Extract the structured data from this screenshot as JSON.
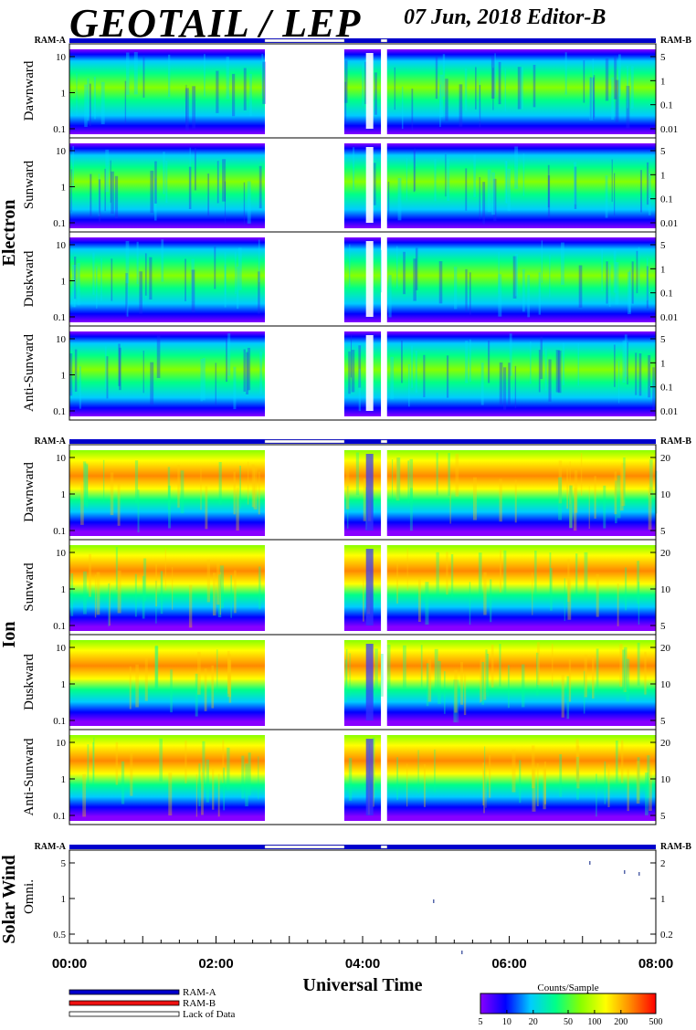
{
  "header": {
    "title": "GEOTAIL / LEP",
    "date_editor": "07 Jun, 2018   Editor-B"
  },
  "chart_data": {
    "type": "heatmap",
    "xlabel": "Universal Time",
    "x_ticks": [
      "00:00",
      "02:00",
      "04:00",
      "06:00",
      "08:00"
    ],
    "xlim": [
      "00:00",
      "08:00"
    ],
    "data_gaps": [
      [
        "02:40",
        "03:45"
      ],
      [
        "04:15",
        "04:20"
      ]
    ],
    "colorbar": {
      "label": "Counts/Sample",
      "range": [
        5,
        500
      ],
      "scale": "log",
      "ticks": [
        "5",
        "10",
        "20",
        "50",
        "100",
        "200",
        "500"
      ],
      "colors": [
        "#8800ff",
        "#0000ff",
        "#00ccff",
        "#00ff88",
        "#88ff00",
        "#ffff00",
        "#ff8800",
        "#ff0000"
      ]
    },
    "legend": [
      {
        "label": "RAM-A",
        "color": "#0000cc"
      },
      {
        "label": "RAM-B",
        "color": "#ee1111"
      },
      {
        "label": "Lack of Data",
        "color": "#ffffff"
      }
    ],
    "groups": [
      {
        "name": "Electron",
        "ram_left": "RAM-A",
        "ram_right": "RAM-B",
        "left_ticks": [
          "10",
          "1",
          "0.1"
        ],
        "right_ticks": [
          "5",
          "1",
          "0.1",
          "0.01"
        ],
        "panels": [
          "Dawnward",
          "Sunward",
          "Duskward",
          "Anti-Sunward"
        ]
      },
      {
        "name": "Ion",
        "ram_left": "RAM-A",
        "ram_right": "RAM-B",
        "left_ticks": [
          "10",
          "1",
          "0.1"
        ],
        "right_ticks": [
          "20",
          "10",
          "5"
        ],
        "panels": [
          "Dawnward",
          "Sunward",
          "Duskward",
          "Anti-Sunward"
        ]
      },
      {
        "name": "Solar Wind",
        "ram_left": "RAM-A",
        "ram_right": "RAM-B",
        "left_ticks": [
          "5",
          "1",
          "0.5"
        ],
        "right_ticks": [
          "2",
          "1",
          "0.2"
        ],
        "panels": [
          "Omni."
        ]
      }
    ]
  }
}
